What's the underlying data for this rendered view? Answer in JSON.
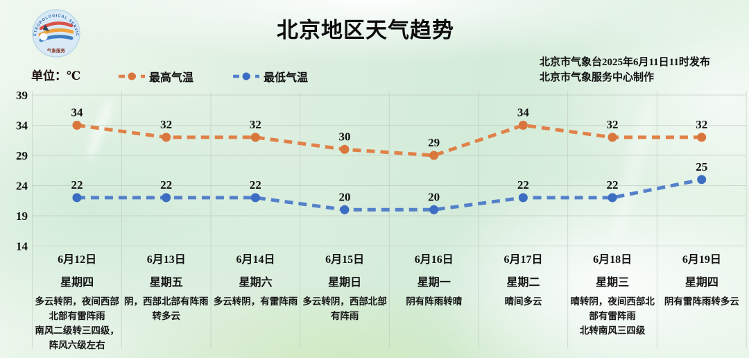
{
  "header": {
    "title": "北京地区天气趋势",
    "release_line1": "北京市气象台2025年6月11日11时发布",
    "release_line2": "北京市气象服务中心制作",
    "logo": {
      "rim_text": "METEOROLOGICAL SERVICE",
      "bottom_text": "气象服务"
    }
  },
  "unit_label": "单位：℃",
  "legend": [
    {
      "label": "最高气温",
      "color": "#E08148",
      "marker_color": "#D9763C"
    },
    {
      "label": "最低气温",
      "color": "#5581CA",
      "marker_color": "#3D6DC2"
    }
  ],
  "chart_data": {
    "type": "line",
    "x": [
      "6月12日",
      "6月13日",
      "6月14日",
      "6月15日",
      "6月16日",
      "6月17日",
      "6月18日",
      "6月19日"
    ],
    "weekdays": [
      "星期四",
      "星期五",
      "星期六",
      "星期日",
      "星期一",
      "星期二",
      "星期三",
      "星期四"
    ],
    "series": [
      {
        "name": "最高气温",
        "values": [
          34,
          32,
          32,
          30,
          29,
          34,
          32,
          32
        ],
        "color": "#E08148",
        "marker_color": "#D9763C"
      },
      {
        "name": "最低气温",
        "values": [
          22,
          22,
          22,
          20,
          20,
          22,
          22,
          25
        ],
        "color": "#5581CA",
        "marker_color": "#3D6DC2"
      }
    ],
    "yticks": [
      39,
      34,
      29,
      24,
      19,
      14
    ],
    "ylim": [
      14,
      39
    ],
    "unit": "℃",
    "grid": true,
    "legend_position": "top",
    "title": "北京地区天气趋势"
  },
  "forecasts": [
    "多云转阴，夜间西部北部有雷阵雨\n南风二级转三四级，阵风六级左右",
    "阴，西部北部有阵雨转多云",
    "多云转阴，有雷阵雨",
    "多云转阴，西部北部有阵雨",
    "阴有阵雨转晴",
    "晴间多云",
    "晴转阴，夜间西部北部有雷阵雨\n北转南风三四级",
    "阴有雷阵雨转多云"
  ]
}
